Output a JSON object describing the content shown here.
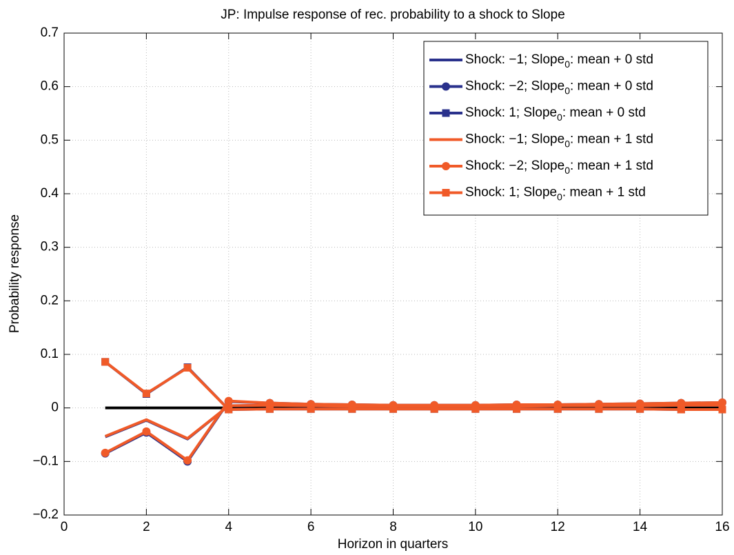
{
  "chart_data": {
    "type": "line",
    "title": "JP: Impulse response of rec. probability to a shock to Slope",
    "xlabel": "Horizon in quarters",
    "ylabel": "Probability response",
    "x": [
      1,
      2,
      3,
      4,
      5,
      6,
      7,
      8,
      9,
      10,
      11,
      12,
      13,
      14,
      15,
      16
    ],
    "xlim": [
      0,
      16
    ],
    "xticks": [
      0,
      2,
      4,
      6,
      8,
      10,
      12,
      14,
      16
    ],
    "ylim": [
      -0.2,
      0.7
    ],
    "yticks": [
      {
        "value": -0.2,
        "label": "−0.2"
      },
      {
        "value": -0.1,
        "label": "−0.1"
      },
      0,
      0.1,
      0.2,
      0.3,
      0.4,
      0.5,
      0.6,
      0.7
    ],
    "grid": true,
    "legend": "upper right",
    "baseline": {
      "x": [
        1,
        16
      ],
      "y": 0,
      "color": "#000000"
    },
    "series": [
      {
        "name": "Shock: −1; Slope0: mean + 0 std",
        "color": "#2a318c",
        "marker": "none",
        "values": [
          -0.054,
          -0.023,
          -0.058,
          0.004,
          0.005,
          0.004,
          0.003,
          0.003,
          0.003,
          0.003,
          0.003,
          0.004,
          0.004,
          0.004,
          0.005,
          0.005
        ]
      },
      {
        "name": "Shock: −2; Slope0: mean + 0 std",
        "color": "#2a318c",
        "marker": "circle",
        "values": [
          -0.085,
          -0.046,
          -0.1,
          0.012,
          0.009,
          0.007,
          0.006,
          0.005,
          0.005,
          0.005,
          0.006,
          0.006,
          0.007,
          0.008,
          0.009,
          0.01
        ]
      },
      {
        "name": "Shock: 1; Slope0: mean + 0 std",
        "color": "#2a318c",
        "marker": "square",
        "values": [
          0.086,
          0.026,
          0.076,
          -0.003,
          -0.002,
          -0.002,
          -0.002,
          -0.002,
          -0.002,
          -0.002,
          -0.002,
          -0.002,
          -0.002,
          -0.002,
          -0.003,
          -0.003
        ]
      },
      {
        "name": "Shock: −1; Slope0: mean + 1 std",
        "color": "#f05a28",
        "marker": "none",
        "values": [
          -0.053,
          -0.022,
          -0.057,
          0.004,
          0.005,
          0.004,
          0.003,
          0.003,
          0.003,
          0.003,
          0.003,
          0.004,
          0.004,
          0.004,
          0.005,
          0.005
        ]
      },
      {
        "name": "Shock: −2; Slope0: mean + 1 std",
        "color": "#f05a28",
        "marker": "circle",
        "values": [
          -0.084,
          -0.044,
          -0.098,
          0.013,
          0.009,
          0.007,
          0.006,
          0.005,
          0.005,
          0.005,
          0.006,
          0.006,
          0.007,
          0.008,
          0.009,
          0.01
        ]
      },
      {
        "name": "Shock: 1; Slope0: mean + 1 std",
        "color": "#f05a28",
        "marker": "square",
        "values": [
          0.086,
          0.027,
          0.075,
          -0.003,
          -0.002,
          -0.002,
          -0.002,
          -0.002,
          -0.002,
          -0.002,
          -0.002,
          -0.002,
          -0.002,
          -0.002,
          -0.003,
          -0.003
        ]
      }
    ]
  }
}
